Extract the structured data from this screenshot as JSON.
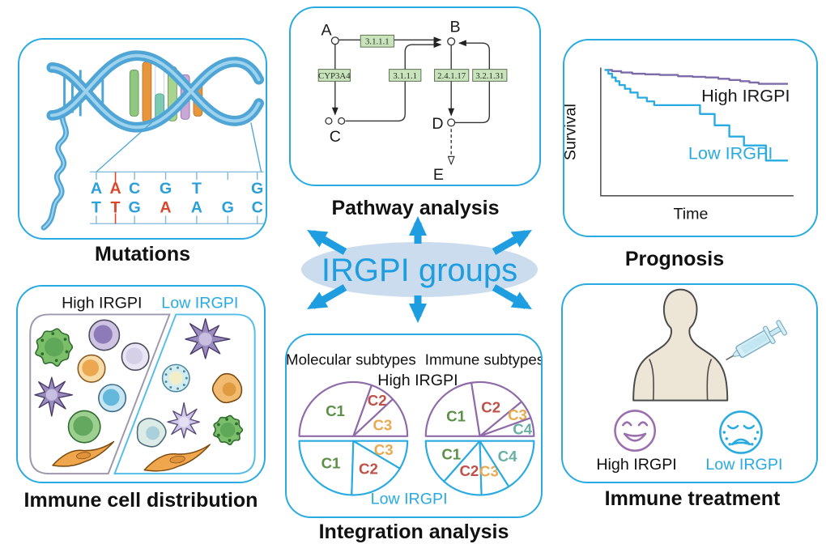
{
  "hub": {
    "label": "IRGPI groups",
    "arrow_icons": [
      "arrow-up-icon",
      "arrow-down-icon",
      "arrow-up-left-icon",
      "arrow-up-right-icon",
      "arrow-down-left-icon",
      "arrow-down-right-icon"
    ]
  },
  "colors": {
    "accent_blue": "#29ABE2",
    "hub_blue": "#1E9EE0",
    "hub_ellipse_fill": "#CBDCEE",
    "high_purple": "#8E6BA8",
    "survival_high_purple": "#7C6BA8",
    "enzyme_box_green": "#C9E4BC",
    "sequence_blue": "#2B9FD9",
    "mutation_red": "#D9482C"
  },
  "panels": {
    "mutations": {
      "title": "Mutations",
      "icon": "dna-helix-icon",
      "sequence": {
        "pairs": [
          {
            "top": "A",
            "bottom": "T",
            "top_mut": false,
            "bottom_mut": false
          },
          {
            "top": "A",
            "bottom": "T",
            "top_mut": true,
            "bottom_mut": true
          },
          {
            "top": "C",
            "bottom": "G",
            "top_mut": false,
            "bottom_mut": false
          },
          {
            "top": "G",
            "bottom": "A",
            "top_mut": false,
            "bottom_mut": true
          },
          {
            "top": "T",
            "bottom": "A",
            "top_mut": false,
            "bottom_mut": false
          },
          {
            "top": "",
            "bottom": "G",
            "top_mut": false,
            "bottom_mut": false
          },
          {
            "top": "G",
            "bottom": "C",
            "top_mut": false,
            "bottom_mut": false
          }
        ]
      }
    },
    "pathway": {
      "title": "Pathway analysis",
      "nodes": [
        "A",
        "B",
        "C",
        "D",
        "E"
      ],
      "enzymes": [
        "3.1.1.1",
        "CYP3A4",
        "3.1.1.1",
        "2.4.1.17",
        "3.2.1.31"
      ]
    },
    "prognosis": {
      "title": "Prognosis"
    },
    "immune_cells": {
      "title": "Immune cell distribution",
      "left_label": "High IRGPI",
      "right_label": "Low IRGPI"
    },
    "integration": {
      "title": "Integration analysis",
      "top_label": "High IRGPI",
      "bottom_label": "Low IRGPI"
    },
    "treatment": {
      "title": "Immune treatment",
      "happy_label": "High IRGPI",
      "sad_label": "Low IRGPI",
      "icons": [
        "human-torso-icon",
        "syringe-icon",
        "happy-face-icon",
        "sad-face-icon"
      ]
    }
  },
  "chart_data": [
    {
      "id": "survival",
      "type": "line",
      "subtype": "kaplan-meier-step",
      "title": "Prognosis",
      "xlabel": "Time",
      "ylabel": "Survival",
      "x_range": [
        0,
        1
      ],
      "y_range": [
        0,
        1
      ],
      "grid": false,
      "legend": "inline-labels",
      "series": [
        {
          "name": "High IRGPI",
          "color": "#7C6BA8",
          "label_color": "#1A1A1A",
          "points": [
            [
              0,
              1.0
            ],
            [
              0.04,
              0.99
            ],
            [
              0.09,
              0.98
            ],
            [
              0.15,
              0.97
            ],
            [
              0.22,
              0.965
            ],
            [
              0.3,
              0.96
            ],
            [
              0.4,
              0.95
            ],
            [
              0.48,
              0.945
            ],
            [
              0.55,
              0.94
            ],
            [
              0.62,
              0.93
            ],
            [
              0.68,
              0.92
            ],
            [
              0.74,
              0.91
            ],
            [
              0.79,
              0.9
            ],
            [
              0.84,
              0.89
            ],
            [
              1.0,
              0.89
            ]
          ]
        },
        {
          "name": "Low IRGPI",
          "color": "#29ABE2",
          "label_color": "#29ABE2",
          "points": [
            [
              0,
              1.0
            ],
            [
              0.02,
              0.97
            ],
            [
              0.04,
              0.94
            ],
            [
              0.06,
              0.91
            ],
            [
              0.08,
              0.88
            ],
            [
              0.11,
              0.85
            ],
            [
              0.14,
              0.82
            ],
            [
              0.18,
              0.78
            ],
            [
              0.23,
              0.75
            ],
            [
              0.27,
              0.72
            ],
            [
              0.52,
              0.65
            ],
            [
              0.6,
              0.56
            ],
            [
              0.68,
              0.47
            ],
            [
              0.76,
              0.4
            ],
            [
              0.88,
              0.28
            ],
            [
              1.0,
              0.28
            ]
          ]
        }
      ]
    },
    {
      "id": "molecular-subtypes",
      "type": "pie",
      "title": "Molecular subtypes",
      "label_colors": {
        "C1": "#5C8F47",
        "C2": "#C05048",
        "C3": "#E9A94F",
        "C4": "#68B0A4"
      },
      "halves": {
        "high": {
          "label": "High IRGPI",
          "outline": "#8E6BA8",
          "slices": [
            {
              "label": "C1",
              "frac": 0.61
            },
            {
              "label": "C2",
              "frac": 0.15
            },
            {
              "label": "C3",
              "frac": 0.24
            }
          ]
        },
        "low": {
          "label": "Low IRGPI",
          "outline": "#29ABE2",
          "slices": [
            {
              "label": "C1",
              "frac": 0.49
            },
            {
              "label": "C2",
              "frac": 0.34
            },
            {
              "label": "C3",
              "frac": 0.17
            }
          ]
        }
      }
    },
    {
      "id": "immune-subtypes",
      "type": "pie",
      "title": "Immune subtypes",
      "label_colors": {
        "C1": "#5C8F47",
        "C2": "#C05048",
        "C3": "#E9A94F",
        "C4": "#68B0A4"
      },
      "halves": {
        "high": {
          "label": "High IRGPI",
          "outline": "#8E6BA8",
          "slices": [
            {
              "label": "C1",
              "frac": 0.45
            },
            {
              "label": "C2",
              "frac": 0.33
            },
            {
              "label": "C3",
              "frac": 0.11
            },
            {
              "label": "C4",
              "frac": 0.11
            }
          ]
        },
        "low": {
          "label": "Low IRGPI",
          "outline": "#29ABE2",
          "slices": [
            {
              "label": "C1",
              "frac": 0.27
            },
            {
              "label": "C2",
              "frac": 0.24
            },
            {
              "label": "C3",
              "frac": 0.17
            },
            {
              "label": "C4",
              "frac": 0.32
            }
          ]
        }
      }
    }
  ]
}
